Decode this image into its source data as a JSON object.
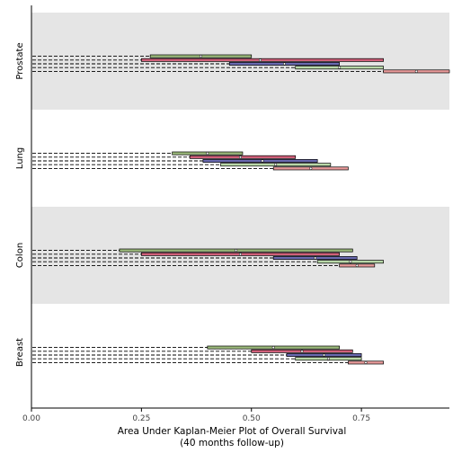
{
  "chart_data": {
    "type": "interval",
    "xlabel": "Area Under Kaplan-Meier Plot of Overall Survival",
    "xlabel_sub": "(40 months follow-up)",
    "xlim": [
      0,
      0.95
    ],
    "xticks": [
      0,
      0.25,
      0.5,
      0.75
    ],
    "xtick_labels": [
      "0.00",
      "0.25",
      "0.50",
      "0.75"
    ],
    "grid": false,
    "band_colors": {
      "shaded": "#e5e5e5",
      "plain": "#ffffff"
    },
    "groups": [
      {
        "name": "Prostate",
        "shaded": true,
        "intervals": [
          {
            "low": 0.27,
            "high": 0.5,
            "point": 0.385,
            "color": "#9ab87a"
          },
          {
            "low": 0.25,
            "high": 0.8,
            "point": 0.52,
            "color": "#d0607a"
          },
          {
            "low": 0.45,
            "high": 0.7,
            "point": 0.575,
            "color": "#6a6ab0"
          },
          {
            "low": 0.6,
            "high": 0.8,
            "point": 0.7,
            "color": "#b8d8a8"
          },
          {
            "low": 0.8,
            "high": 0.95,
            "point": 0.875,
            "color": "#e89a9a"
          }
        ]
      },
      {
        "name": "Lung",
        "shaded": false,
        "intervals": [
          {
            "low": 0.32,
            "high": 0.48,
            "point": 0.4,
            "color": "#9ab87a"
          },
          {
            "low": 0.36,
            "high": 0.6,
            "point": 0.475,
            "color": "#d0607a"
          },
          {
            "low": 0.39,
            "high": 0.65,
            "point": 0.525,
            "color": "#6a6ab0"
          },
          {
            "low": 0.43,
            "high": 0.68,
            "point": 0.555,
            "color": "#b8d8a8"
          },
          {
            "low": 0.55,
            "high": 0.72,
            "point": 0.635,
            "color": "#e89a9a"
          }
        ]
      },
      {
        "name": "Colon",
        "shaded": true,
        "intervals": [
          {
            "low": 0.2,
            "high": 0.73,
            "point": 0.465,
            "color": "#9ab87a"
          },
          {
            "low": 0.25,
            "high": 0.7,
            "point": 0.475,
            "color": "#d0607a"
          },
          {
            "low": 0.55,
            "high": 0.74,
            "point": 0.645,
            "color": "#6a6ab0"
          },
          {
            "low": 0.65,
            "high": 0.8,
            "point": 0.725,
            "color": "#b8d8a8"
          },
          {
            "low": 0.7,
            "high": 0.78,
            "point": 0.74,
            "color": "#e89a9a"
          }
        ]
      },
      {
        "name": "Breast",
        "shaded": false,
        "intervals": [
          {
            "low": 0.4,
            "high": 0.7,
            "point": 0.55,
            "color": "#9ab87a"
          },
          {
            "low": 0.5,
            "high": 0.73,
            "point": 0.615,
            "color": "#d0607a"
          },
          {
            "low": 0.58,
            "high": 0.75,
            "point": 0.665,
            "color": "#6a6ab0"
          },
          {
            "low": 0.6,
            "high": 0.75,
            "point": 0.675,
            "color": "#b8d8a8"
          },
          {
            "low": 0.72,
            "high": 0.8,
            "point": 0.76,
            "color": "#e89a9a"
          }
        ]
      }
    ]
  }
}
